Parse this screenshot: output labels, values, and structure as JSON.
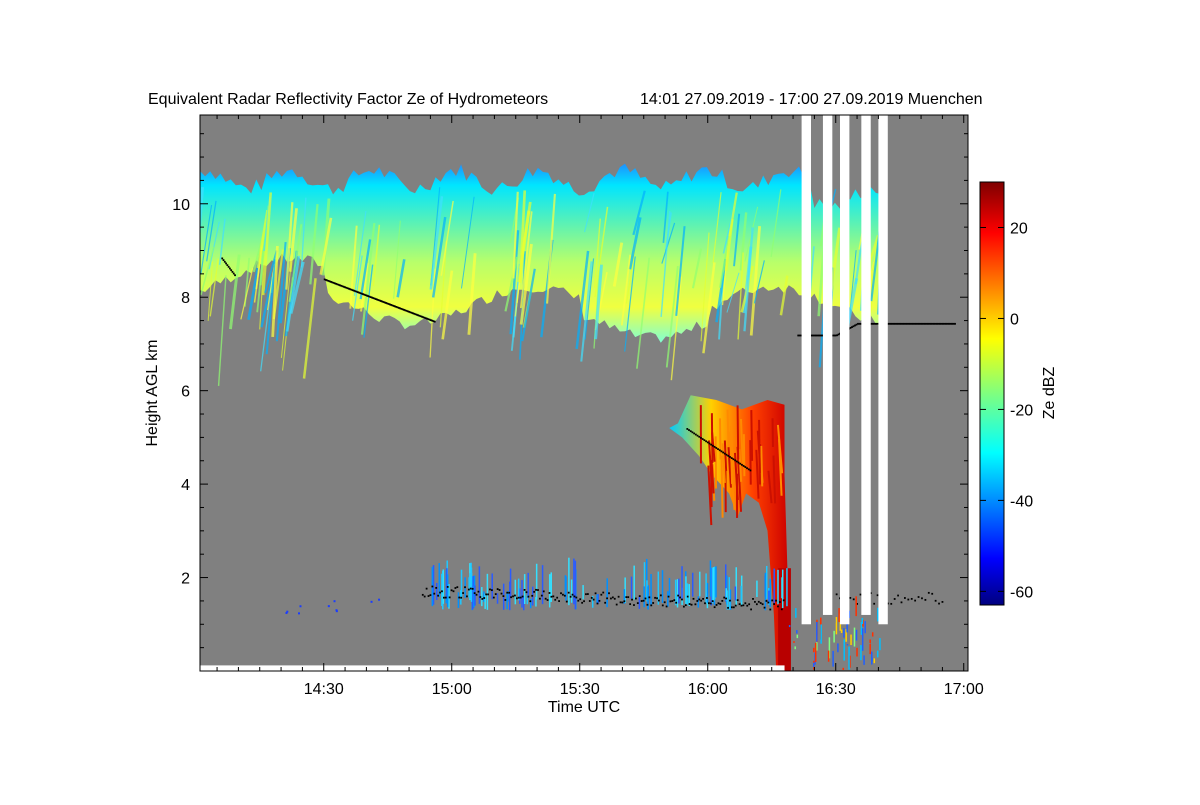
{
  "chart_data": {
    "type": "heatmap",
    "title": "Equivalent Radar Reflectivity Factor Ze of Hydrometeors",
    "time_range_label": "14:01 27.09.2019 - 17:00 27.09.2019 Muenchen",
    "xlabel": "Time UTC",
    "ylabel": "Height AGL km",
    "x_tick_labels": [
      "14:30",
      "15:00",
      "15:30",
      "16:00",
      "16:30",
      "17:00"
    ],
    "x_tick_values_min": [
      870,
      900,
      930,
      960,
      990,
      1020
    ],
    "xlim_min": [
      841,
      1021
    ],
    "y_ticks": [
      2,
      4,
      6,
      8,
      10
    ],
    "ylim": [
      0,
      11.9
    ],
    "colorbar": {
      "label": "Ze dBZ",
      "ticks": [
        20,
        0,
        -20,
        -40,
        -60
      ],
      "range": [
        -63,
        30
      ],
      "colormap": "jet"
    },
    "background_color": "#808080",
    "no_data_color": "#ffffff",
    "features": {
      "upper_ice_layer": {
        "time_min": [
          841,
          1003
        ],
        "base_km": 6.8,
        "top_km": 10.6,
        "ze_dbz_range": [
          -30,
          0
        ]
      },
      "precip_fall_streak": {
        "time_min": [
          951,
          979
        ],
        "base_km": 0.1,
        "top_km": 5.9,
        "ze_dbz_max": 25
      },
      "boundary_layer_echoes": {
        "time_min": [
          890,
          979
        ],
        "base_km": 1.3,
        "top_km": 2.4,
        "ze_dbz_range": [
          -45,
          -25
        ]
      },
      "data_gaps_start_min": [
        982,
        987,
        991,
        996,
        1000
      ]
    }
  }
}
